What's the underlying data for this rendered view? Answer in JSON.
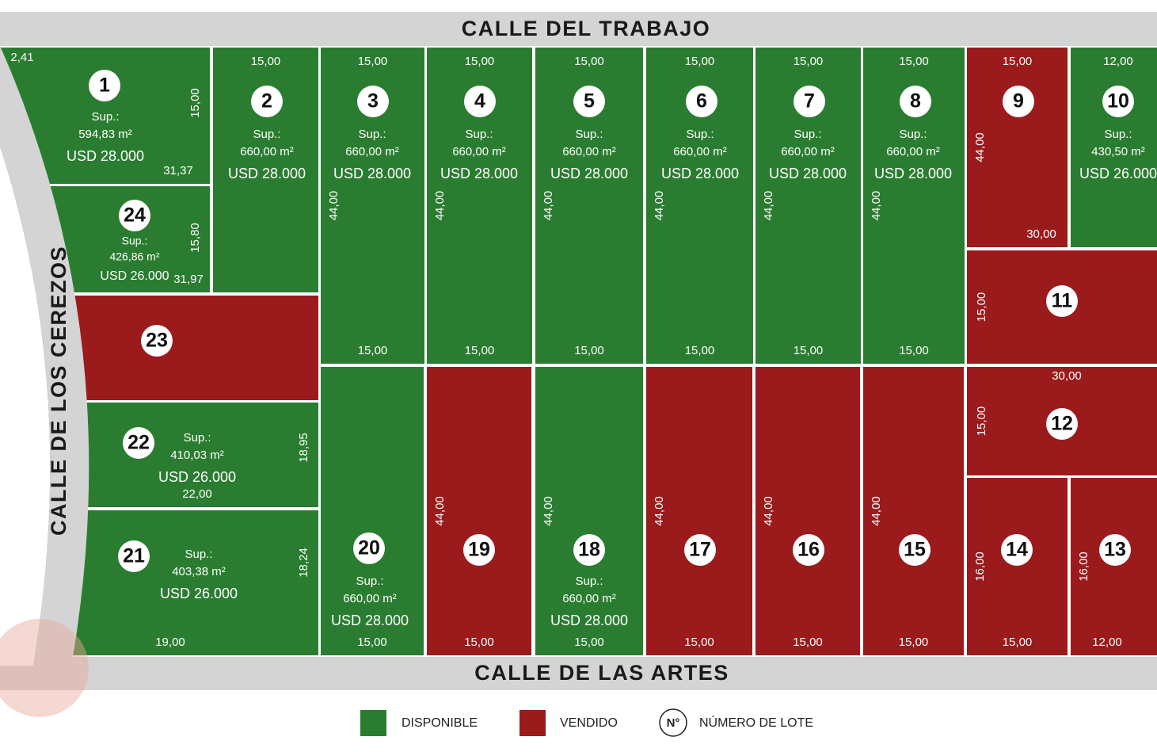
{
  "streets": {
    "top": "CALLE DEL TRABAJO",
    "bottom": "CALLE DE LAS ARTES",
    "left": "CALLE DE LOS CEREZOS"
  },
  "lots": [
    {
      "number": "1",
      "color": "#2a7d30",
      "sup_label": "Sup.:",
      "area": "594,83 m²",
      "price": "USD 28.000",
      "dims": {
        "top": "2,41",
        "right": "15,00",
        "bottom": "31,37"
      }
    },
    {
      "number": "2",
      "color": "#2a7d30",
      "sup_label": "Sup.:",
      "area": "660,00 m²",
      "price": "USD 28.000",
      "dims": {
        "top": "15,00"
      }
    },
    {
      "number": "3",
      "color": "#2a7d30",
      "sup_label": "Sup.:",
      "area": "660,00 m²",
      "price": "USD 28.000",
      "dims": {
        "top": "15,00",
        "left": "44,00",
        "bottom": "15,00"
      }
    },
    {
      "number": "4",
      "color": "#2a7d30",
      "sup_label": "Sup.:",
      "area": "660,00 m²",
      "price": "USD 28.000",
      "dims": {
        "top": "15,00",
        "left": "44,00",
        "bottom": "15,00"
      }
    },
    {
      "number": "5",
      "color": "#2a7d30",
      "sup_label": "Sup.:",
      "area": "660,00 m²",
      "price": "USD 28.000",
      "dims": {
        "top": "15,00",
        "left": "44,00",
        "bottom": "15,00"
      }
    },
    {
      "number": "6",
      "color": "#2a7d30",
      "sup_label": "Sup.:",
      "area": "660,00 m²",
      "price": "USD 28.000",
      "dims": {
        "top": "15,00",
        "left": "44,00",
        "bottom": "15,00"
      }
    },
    {
      "number": "7",
      "color": "#2a7d30",
      "sup_label": "Sup.:",
      "area": "660,00 m²",
      "price": "USD 28.000",
      "dims": {
        "top": "15,00",
        "left": "44,00",
        "bottom": "15,00"
      }
    },
    {
      "number": "8",
      "color": "#2a7d30",
      "sup_label": "Sup.:",
      "area": "660,00 m²",
      "price": "USD 28.000",
      "dims": {
        "top": "15,00",
        "left": "44,00",
        "bottom": "15,00"
      }
    },
    {
      "number": "9",
      "color": "#9b1a1c",
      "dims": {
        "top": "15,00",
        "left": "44,00",
        "bottom": "30,00"
      }
    },
    {
      "number": "10",
      "color": "#2a7d30",
      "sup_label": "Sup.:",
      "area": "430,50 m²",
      "price": "USD 26.000",
      "dims": {
        "top": "12,00"
      }
    },
    {
      "number": "11",
      "color": "#9b1a1c",
      "dims": {
        "left": "15,00"
      }
    },
    {
      "number": "12",
      "color": "#9b1a1c",
      "dims": {
        "top": "30,00",
        "left": "15,00"
      }
    },
    {
      "number": "13",
      "color": "#9b1a1c",
      "dims": {
        "left": "16,00",
        "bottom": "12,00"
      }
    },
    {
      "number": "14",
      "color": "#9b1a1c",
      "dims": {
        "left": "16,00",
        "bottom": "15,00"
      }
    },
    {
      "number": "15",
      "color": "#9b1a1c",
      "dims": {
        "left": "44,00",
        "bottom": "15,00"
      }
    },
    {
      "number": "16",
      "color": "#9b1a1c",
      "dims": {
        "left": "44,00",
        "bottom": "15,00"
      }
    },
    {
      "number": "17",
      "color": "#9b1a1c",
      "dims": {
        "left": "44,00",
        "bottom": "15,00"
      }
    },
    {
      "number": "18",
      "color": "#2a7d30",
      "sup_label": "Sup.:",
      "area": "660,00 m²",
      "price": "USD 28.000",
      "dims": {
        "left": "44,00",
        "bottom": "15,00"
      }
    },
    {
      "number": "19",
      "color": "#9b1a1c",
      "dims": {
        "left": "44,00",
        "bottom": "15,00"
      }
    },
    {
      "number": "20",
      "color": "#2a7d30",
      "sup_label": "Sup.:",
      "area": "660,00 m²",
      "price": "USD 28.000",
      "dims": {
        "bottom": "15,00"
      }
    },
    {
      "number": "21",
      "color": "#2a7d30",
      "sup_label": "Sup.:",
      "area": "403,38 m²",
      "price": "USD 26.000",
      "dims": {
        "right": "18,24",
        "bottom": "19,00"
      }
    },
    {
      "number": "22",
      "color": "#2a7d30",
      "sup_label": "Sup.:",
      "area": "410,03 m²",
      "price": "USD 26.000",
      "dims": {
        "right": "18,95",
        "bottom": "22,00"
      }
    },
    {
      "number": "23",
      "color": "#9b1a1c",
      "dims": {}
    },
    {
      "number": "24",
      "color": "#2a7d30",
      "sup_label": "Sup.:",
      "area": "426,86 m²",
      "price": "USD 26.000",
      "dims": {
        "right": "15,80",
        "bottom": "31,97"
      }
    }
  ],
  "legend": {
    "items": [
      {
        "label": "DISPONIBLE",
        "color": "#2a7d30"
      },
      {
        "label": "VENDIDO",
        "color": "#9b1a1c"
      }
    ],
    "symbol": "N°",
    "symbol_label": "NÚMERO DE LOTE"
  }
}
